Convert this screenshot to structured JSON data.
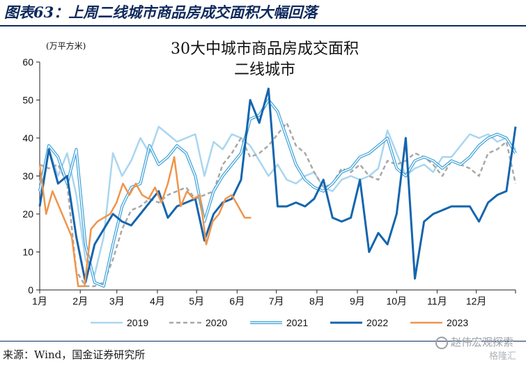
{
  "figure_title": "图表63：上周二线城市商品房成交面积大幅回落",
  "source": "来源：Wind，国金证券研究所",
  "watermark": "赵伟宏观探索",
  "watermark_sub": "格隆汇",
  "chart_data": {
    "type": "line",
    "title": "30大中城市商品房成交面积",
    "subtitle": "二线城市",
    "unit": "(万平方米)",
    "ylim": [
      0,
      60
    ],
    "yticks": [
      0,
      10,
      20,
      30,
      40,
      50,
      60
    ],
    "xlim": [
      0,
      52
    ],
    "xticks": [
      {
        "label": "1月",
        "week": 0
      },
      {
        "label": "2月",
        "week": 4.43
      },
      {
        "label": "3月",
        "week": 8.43
      },
      {
        "label": "4月",
        "week": 12.86
      },
      {
        "label": "5月",
        "week": 17.14
      },
      {
        "label": "6月",
        "week": 21.57
      },
      {
        "label": "7月",
        "week": 25.86
      },
      {
        "label": "8月",
        "week": 30.29
      },
      {
        "label": "9月",
        "week": 34.71
      },
      {
        "label": "10月",
        "week": 39.0
      },
      {
        "label": "11月",
        "week": 43.43
      },
      {
        "label": "12月",
        "week": 47.71
      }
    ],
    "grid": false,
    "legend_position": "bottom",
    "series": [
      {
        "name": "2019",
        "color": "#a9d6f0",
        "style": "solid",
        "width": 2.5,
        "x": [
          0,
          1,
          2,
          3,
          4,
          5,
          6,
          7,
          8,
          9,
          10,
          11,
          12,
          13,
          14,
          15,
          16,
          17,
          18,
          19,
          20,
          21,
          22,
          23,
          24,
          25,
          26,
          27,
          28,
          29,
          30,
          31,
          32,
          33,
          34,
          35,
          36,
          37,
          38,
          39,
          40,
          41,
          42,
          43,
          44,
          45,
          46,
          47,
          48,
          49,
          50,
          51,
          52
        ],
        "y": [
          28,
          37,
          30,
          36,
          25,
          8,
          4,
          14,
          36,
          30,
          34,
          40,
          36,
          43,
          41,
          39,
          40,
          41,
          30,
          39,
          37,
          41,
          40,
          38,
          34,
          30,
          33,
          29,
          28,
          30,
          31,
          27,
          26,
          29,
          30,
          29,
          30,
          32,
          42,
          36,
          30,
          32,
          33,
          31,
          35,
          35,
          38,
          41,
          40,
          41,
          39,
          40,
          37
        ]
      },
      {
        "name": "2020",
        "color": "#a8a8a8",
        "style": "dashed",
        "width": 2.5,
        "x": [
          0,
          1,
          2,
          3,
          4,
          5,
          6,
          7,
          8,
          9,
          10,
          11,
          12,
          13,
          14,
          15,
          16,
          17,
          18,
          19,
          20,
          21,
          22,
          23,
          24,
          25,
          26,
          27,
          28,
          29,
          30,
          31,
          32,
          33,
          34,
          35,
          36,
          37,
          38,
          39,
          40,
          41,
          42,
          43,
          44,
          45,
          46,
          47,
          48,
          49,
          50,
          51,
          52
        ],
        "y": [
          33,
          32,
          33,
          28,
          5,
          1,
          1,
          2,
          8,
          16,
          21,
          22,
          24,
          23,
          25,
          26,
          27,
          24,
          25,
          26,
          33,
          36,
          40,
          35,
          36,
          38,
          41,
          44,
          38,
          36,
          31,
          27,
          28,
          32,
          31,
          33,
          30,
          29,
          34,
          33,
          34,
          36,
          35,
          33,
          30,
          34,
          33,
          32,
          30,
          36,
          37,
          39,
          28
        ]
      },
      {
        "name": "2021",
        "color": "#3aa0d8",
        "style": "double",
        "width": 1.5,
        "x": [
          0,
          1,
          2,
          3,
          4,
          5,
          6,
          7,
          8,
          9,
          10,
          11,
          12,
          13,
          14,
          15,
          16,
          17,
          18,
          19,
          20,
          21,
          22,
          23,
          24,
          25,
          26,
          27,
          28,
          29,
          30,
          31,
          32,
          33,
          34,
          35,
          36,
          37,
          38,
          39,
          40,
          41,
          42,
          43,
          44,
          45,
          46,
          47,
          48,
          49,
          50,
          51,
          52
        ],
        "y": [
          26,
          38,
          35,
          28,
          37,
          12,
          2,
          1,
          12,
          22,
          27,
          28,
          38,
          33,
          35,
          38,
          36,
          30,
          18,
          26,
          30,
          33,
          36,
          45,
          46,
          50,
          47,
          40,
          33,
          29,
          27,
          26,
          28,
          31,
          32,
          35,
          36,
          38,
          40,
          32,
          30,
          34,
          35,
          34,
          32,
          34,
          33,
          35,
          38,
          40,
          41,
          40,
          36
        ]
      },
      {
        "name": "2022",
        "color": "#1565ad",
        "style": "solid",
        "width": 3,
        "x": [
          0,
          1,
          2,
          3,
          4,
          5,
          6,
          7,
          8,
          9,
          10,
          11,
          12,
          13,
          14,
          15,
          16,
          17,
          18,
          19,
          20,
          21,
          22,
          23,
          24,
          25,
          26,
          27,
          28,
          29,
          30,
          31,
          32,
          33,
          34,
          35,
          36,
          37,
          38,
          39,
          40,
          41,
          42,
          43,
          44,
          45,
          46,
          47,
          48,
          49,
          50,
          51,
          52
        ],
        "y": [
          22,
          37,
          28,
          30,
          14,
          2,
          12,
          16,
          20,
          18,
          17,
          20,
          23,
          26,
          19,
          22,
          23,
          24,
          13,
          20,
          23,
          24,
          29,
          50,
          44,
          53,
          22,
          22,
          23,
          22,
          24,
          29,
          19,
          18,
          19,
          29,
          10,
          15,
          12,
          20,
          40,
          3,
          18,
          20,
          21,
          22,
          22,
          22,
          18,
          23,
          25,
          26,
          43
        ]
      },
      {
        "name": "2023",
        "color": "#f0944a",
        "style": "solid",
        "width": 2.5,
        "x": [
          0,
          0.7,
          1.4,
          2.1,
          2.8,
          3.5,
          4.2,
          4.9,
          5.6,
          6.3,
          7.0,
          7.7,
          8.4,
          9.1,
          9.8,
          10.5,
          11.2,
          11.9,
          12.6,
          13.3,
          14.0,
          14.7,
          15.4,
          16.1,
          16.8,
          17.5,
          18.2,
          18.9,
          19.6,
          20.3,
          21.0,
          21.7,
          22.4,
          23.1
        ],
        "y": [
          33,
          20,
          26,
          22,
          18,
          14,
          1,
          1,
          16,
          18,
          19,
          20,
          23,
          28,
          25,
          28,
          25,
          24,
          27,
          23,
          28,
          35,
          22,
          26,
          24,
          25,
          12,
          18,
          20,
          24,
          25,
          22,
          19,
          19
        ]
      }
    ]
  }
}
